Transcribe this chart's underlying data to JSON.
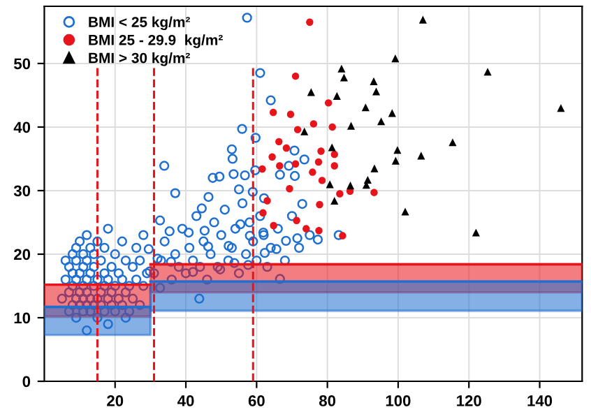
{
  "chart_data": {
    "type": "scatter",
    "xlim": [
      0,
      152
    ],
    "ylim": [
      0,
      59
    ],
    "xticks": [
      20,
      40,
      60,
      80,
      100,
      120,
      140
    ],
    "yticks": [
      0,
      10,
      20,
      30,
      40,
      50
    ],
    "grid": true,
    "legend": "top left",
    "series": [
      {
        "name": "BMI < 25 kg/m²",
        "color": "#1f6fd1",
        "marker": "circle",
        "x": [
          5,
          6,
          6,
          7,
          7,
          7,
          8,
          8,
          8,
          8,
          9,
          9,
          9,
          9,
          9,
          10,
          10,
          10,
          10,
          11,
          11,
          11,
          11,
          11,
          12,
          12,
          12,
          12,
          12,
          13,
          13,
          13,
          13,
          14,
          14,
          14,
          14,
          15,
          15,
          15,
          15,
          16,
          16,
          16,
          17,
          17,
          17,
          17,
          18,
          18,
          18,
          19,
          19,
          19,
          20,
          20,
          20,
          21,
          21,
          22,
          22,
          22,
          23,
          23,
          24,
          24,
          25,
          25,
          26,
          26,
          27,
          27,
          28,
          28,
          29,
          12,
          18,
          23,
          31,
          33,
          34,
          36,
          37,
          38,
          39,
          40,
          41,
          42,
          43,
          44,
          45,
          46,
          47,
          48,
          49,
          50,
          51,
          52,
          53,
          54,
          55,
          56,
          57,
          58,
          59,
          60,
          61,
          62,
          63,
          64,
          66,
          68,
          70,
          72,
          75,
          77.3,
          83.2,
          57.3,
          61,
          64,
          55.9,
          59.7,
          53,
          53.2,
          33.9,
          37,
          47.6,
          49.5,
          53.5,
          56.7,
          59.6,
          58.9,
          55,
          46.4,
          62.1,
          70.7,
          69.1,
          70.8,
          66.6,
          73.5,
          72.9,
          32.7,
          35.4,
          40.8,
          44.5,
          45.3,
          46.3,
          52.1,
          55.4,
          58.1,
          61.9,
          65.6,
          62.3,
          68.3,
          71.5,
          57.6,
          66.6,
          53.7,
          49.7,
          42,
          43.8,
          35.8,
          32,
          32.7,
          29.8,
          29.5
        ],
        "values": [
          13,
          16,
          19,
          11,
          14,
          18,
          12,
          15,
          17,
          20,
          10,
          13,
          16,
          19,
          21,
          12,
          14,
          17,
          22,
          11,
          13,
          15,
          18,
          20,
          12,
          14,
          16,
          19,
          23,
          11,
          13,
          17,
          21,
          12,
          15,
          18,
          20,
          10,
          13,
          16,
          22,
          12,
          14,
          19,
          11,
          15,
          17,
          21,
          13,
          16,
          24,
          12,
          14,
          18,
          11,
          15,
          20,
          13,
          17,
          12,
          16,
          22,
          14,
          19,
          11,
          15,
          13,
          18,
          16,
          21,
          12,
          19,
          15,
          23,
          17,
          8,
          9,
          10,
          17,
          19,
          22,
          16,
          20,
          18,
          24,
          17,
          21,
          19,
          26,
          18,
          22,
          16,
          20,
          25,
          18,
          23,
          27,
          19,
          21,
          24,
          17,
          28,
          20,
          25,
          22,
          19,
          26,
          23,
          18,
          21,
          24,
          19,
          26,
          21,
          23,
          22.3,
          23,
          57.2,
          48.5,
          44.2,
          39.7,
          38.3,
          36.5,
          35,
          33.9,
          29.6,
          32,
          32.2,
          32.6,
          32.4,
          33.2,
          29.8,
          30.2,
          29,
          28.8,
          36.3,
          33.9,
          32.3,
          32.5,
          34.9,
          27.9,
          25.3,
          23.6,
          23.4,
          27.2,
          23.7,
          21.2,
          21.3,
          24.7,
          22.9,
          23.4,
          20.8,
          20.2,
          22.1,
          22.5,
          18.3,
          16.1,
          18.6,
          17.6,
          17.2,
          13,
          18.8,
          19.3,
          14.7,
          17.3,
          20.8
        ]
      },
      {
        "name": "BMI 25 - 29.9  kg/m²",
        "color": "#e8141b",
        "marker": "circle",
        "x": [
          75,
          71,
          64.7,
          69.6,
          71.6,
          66.3,
          68.4,
          64.4,
          66.5,
          61.6,
          69.3,
          63,
          71,
          80.3,
          76.1,
          81.4,
          78.2,
          82,
          77.5,
          82,
          75.8,
          78.5,
          83.5,
          86.4,
          93.2,
          77.8,
          74,
          77.6,
          84.3,
          61.8,
          64.8,
          71.3
        ],
        "values": [
          56.5,
          48,
          42.3,
          42,
          39.6,
          37.7,
          36.7,
          35.3,
          33.9,
          33.4,
          30.3,
          28.4,
          34.2,
          43.8,
          40.5,
          40,
          36.2,
          35.7,
          34.5,
          33.9,
          32.9,
          31.6,
          29.5,
          29.9,
          29.7,
          27.8,
          24,
          23.7,
          22.9,
          26.5,
          24.5,
          25.3
        ]
      },
      {
        "name": "BMI > 30 kg/m²",
        "color": "#000000",
        "marker": "triangle",
        "x": [
          107,
          99.2,
          125.3,
          84,
          84.7,
          93.1,
          93.8,
          146,
          82.7,
          90.8,
          98.3,
          95.2,
          86.7,
          115.4,
          81.3,
          99.8,
          106.5,
          99.3,
          93.3,
          91.4,
          91,
          86.5,
          80.7,
          82,
          102,
          75.4,
          73.5,
          122
        ],
        "values": [
          56.9,
          50.8,
          48.7,
          49.2,
          47.8,
          47.2,
          45.6,
          43,
          44.9,
          43.1,
          42.2,
          40.9,
          40.2,
          37.6,
          36.8,
          36.4,
          35.5,
          34.7,
          33.5,
          31.7,
          30.9,
          30.8,
          31,
          28.4,
          26.7,
          45.5,
          39.3,
          23.4
        ]
      },
      {
        "type": "line",
        "color": "#e8141b",
        "x": [
          0,
          30
        ],
        "values": [
          15.2,
          15.2
        ],
        "upper": [
          15.2,
          15.2
        ],
        "lower": [
          10.2,
          10.2
        ]
      },
      {
        "type": "line",
        "color": "#e8141b",
        "x": [
          30,
          152
        ],
        "values": [
          18.4,
          18.4
        ],
        "upper": [
          18.4,
          18.4
        ],
        "lower": [
          14.0,
          14.0
        ]
      },
      {
        "type": "line",
        "color": "#1f6fd1",
        "x": [
          0,
          30
        ],
        "values": [
          11.7,
          11.7
        ],
        "upper": [
          11.7,
          11.7
        ],
        "lower": [
          7.3,
          7.3
        ]
      },
      {
        "type": "line",
        "color": "#1f6fd1",
        "x": [
          30,
          152
        ],
        "values": [
          15.7,
          15.7
        ],
        "upper": [
          15.7,
          15.7
        ],
        "lower": [
          11.1,
          11.1
        ]
      }
    ],
    "ref_lines": [
      {
        "axis": "x",
        "value": 15,
        "color": "#e8141b",
        "line_style": "dashed"
      },
      {
        "axis": "x",
        "value": 31,
        "color": "#e8141b",
        "line_style": "dashed"
      },
      {
        "axis": "x",
        "value": 59,
        "color": "#e8141b",
        "line_style": "dashed"
      }
    ]
  }
}
